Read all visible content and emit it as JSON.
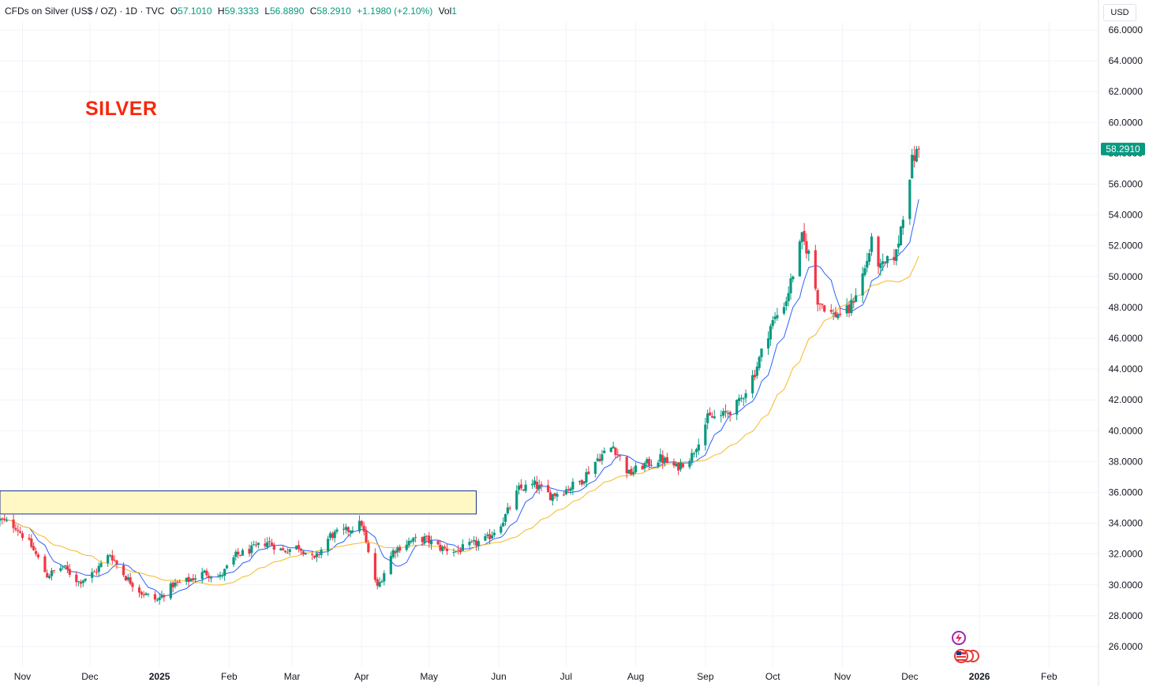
{
  "header": {
    "symbol": "CFDs on Silver (US$ / OZ) · 1D · TVC",
    "o_label": "O",
    "o_value": "57.1010",
    "h_label": "H",
    "h_value": "59.3333",
    "l_label": "L",
    "l_value": "56.8890",
    "c_label": "C",
    "c_value": "58.2910",
    "change": "+1.1980 (+2.10%)",
    "vol_label": "Vol",
    "vol_value": "1"
  },
  "currency": "USD",
  "annotation": "SILVER",
  "last_price_label": "58.2910",
  "colors": {
    "up": "#089981",
    "down": "#f23645",
    "ma_fast": "#2962ff",
    "ma_slow": "#f7b924",
    "zone_fill": "#fff8c5",
    "zone_border": "#1c2f8f",
    "grid": "#f0f3fa",
    "annotation": "#f7280c"
  },
  "chart_data": {
    "type": "candlestick",
    "title": "",
    "xlabel": "",
    "ylabel": "",
    "ylim": [
      25,
      67
    ],
    "y_ticks": [
      "26.0000",
      "28.0000",
      "30.0000",
      "32.0000",
      "34.0000",
      "36.0000",
      "38.0000",
      "40.0000",
      "42.0000",
      "44.0000",
      "46.0000",
      "48.0000",
      "50.0000",
      "52.0000",
      "54.0000",
      "56.0000",
      "58.0000",
      "60.0000",
      "62.0000",
      "64.0000",
      "66.0000"
    ],
    "x_ticks": [
      {
        "label": "Nov",
        "date": "2024-11-01"
      },
      {
        "label": "Dec",
        "date": "2024-12-01"
      },
      {
        "label": "2025",
        "date": "2025-01-01",
        "strong": true
      },
      {
        "label": "Feb",
        "date": "2025-02-01"
      },
      {
        "label": "Mar",
        "date": "2025-03-01"
      },
      {
        "label": "Apr",
        "date": "2025-04-01"
      },
      {
        "label": "May",
        "date": "2025-05-01"
      },
      {
        "label": "Jun",
        "date": "2025-06-01"
      },
      {
        "label": "Jul",
        "date": "2025-07-01"
      },
      {
        "label": "Aug",
        "date": "2025-08-01"
      },
      {
        "label": "Sep",
        "date": "2025-09-01"
      },
      {
        "label": "Oct",
        "date": "2025-10-01"
      },
      {
        "label": "Nov",
        "date": "2025-11-01"
      },
      {
        "label": "Dec",
        "date": "2025-12-01"
      },
      {
        "label": "2026",
        "date": "2026-01-01",
        "strong": true
      },
      {
        "label": "Feb",
        "date": "2026-02-01"
      }
    ],
    "x_range": [
      "2024-10-22",
      "2026-02-23"
    ],
    "close_path": [
      {
        "date": "2024-10-22",
        "close": 34.2
      },
      {
        "date": "2024-10-29",
        "close": 33.8
      },
      {
        "date": "2024-11-05",
        "close": 32.5
      },
      {
        "date": "2024-11-12",
        "close": 30.6
      },
      {
        "date": "2024-11-19",
        "close": 31.2
      },
      {
        "date": "2024-11-26",
        "close": 30.2
      },
      {
        "date": "2024-12-03",
        "close": 30.8
      },
      {
        "date": "2024-12-10",
        "close": 32.0
      },
      {
        "date": "2024-12-17",
        "close": 30.5
      },
      {
        "date": "2024-12-24",
        "close": 29.5
      },
      {
        "date": "2024-12-31",
        "close": 29.0
      },
      {
        "date": "2025-01-07",
        "close": 30.0
      },
      {
        "date": "2025-01-14",
        "close": 30.3
      },
      {
        "date": "2025-01-21",
        "close": 30.8
      },
      {
        "date": "2025-01-28",
        "close": 30.5
      },
      {
        "date": "2025-02-04",
        "close": 31.9
      },
      {
        "date": "2025-02-11",
        "close": 32.3
      },
      {
        "date": "2025-02-18",
        "close": 32.8
      },
      {
        "date": "2025-02-25",
        "close": 32.2
      },
      {
        "date": "2025-03-04",
        "close": 32.5
      },
      {
        "date": "2025-03-11",
        "close": 31.6
      },
      {
        "date": "2025-03-18",
        "close": 33.2
      },
      {
        "date": "2025-03-25",
        "close": 33.5
      },
      {
        "date": "2025-04-01",
        "close": 34.0
      },
      {
        "date": "2025-04-04",
        "close": 32.0
      },
      {
        "date": "2025-04-08",
        "close": 29.8
      },
      {
        "date": "2025-04-15",
        "close": 32.2
      },
      {
        "date": "2025-04-22",
        "close": 32.8
      },
      {
        "date": "2025-04-29",
        "close": 33.0
      },
      {
        "date": "2025-05-06",
        "close": 32.4
      },
      {
        "date": "2025-05-13",
        "close": 32.2
      },
      {
        "date": "2025-05-20",
        "close": 32.6
      },
      {
        "date": "2025-05-27",
        "close": 33.0
      },
      {
        "date": "2025-06-03",
        "close": 34.2
      },
      {
        "date": "2025-06-10",
        "close": 36.2
      },
      {
        "date": "2025-06-17",
        "close": 36.5
      },
      {
        "date": "2025-06-24",
        "close": 35.8
      },
      {
        "date": "2025-07-01",
        "close": 36.2
      },
      {
        "date": "2025-07-08",
        "close": 36.8
      },
      {
        "date": "2025-07-15",
        "close": 38.2
      },
      {
        "date": "2025-07-22",
        "close": 39.0
      },
      {
        "date": "2025-07-29",
        "close": 37.2
      },
      {
        "date": "2025-08-05",
        "close": 37.8
      },
      {
        "date": "2025-08-12",
        "close": 38.2
      },
      {
        "date": "2025-08-19",
        "close": 37.6
      },
      {
        "date": "2025-08-26",
        "close": 38.4
      },
      {
        "date": "2025-09-02",
        "close": 40.8
      },
      {
        "date": "2025-09-09",
        "close": 41.0
      },
      {
        "date": "2025-09-16",
        "close": 41.8
      },
      {
        "date": "2025-09-23",
        "close": 43.8
      },
      {
        "date": "2025-09-30",
        "close": 46.8
      },
      {
        "date": "2025-10-07",
        "close": 48.5
      },
      {
        "date": "2025-10-14",
        "close": 52.5
      },
      {
        "date": "2025-10-17",
        "close": 51.5
      },
      {
        "date": "2025-10-21",
        "close": 48.5
      },
      {
        "date": "2025-10-28",
        "close": 47.5
      },
      {
        "date": "2025-11-04",
        "close": 47.8
      },
      {
        "date": "2025-11-11",
        "close": 50.5
      },
      {
        "date": "2025-11-14",
        "close": 52.2
      },
      {
        "date": "2025-11-18",
        "close": 50.5
      },
      {
        "date": "2025-11-25",
        "close": 51.5
      },
      {
        "date": "2025-12-02",
        "close": 57.5
      },
      {
        "date": "2025-12-05",
        "close": 58.291
      }
    ],
    "series": [
      {
        "name": "",
        "kind": "ma_fast",
        "color": "#2962ff"
      },
      {
        "name": "",
        "kind": "ma_slow",
        "color": "#f7b924"
      }
    ],
    "zone": {
      "from_date": "2024-10-22",
      "to_date": "2025-05-22",
      "low": 34.6,
      "high": 36.1
    },
    "last_close": 58.291,
    "grid": true,
    "legend": "none"
  }
}
